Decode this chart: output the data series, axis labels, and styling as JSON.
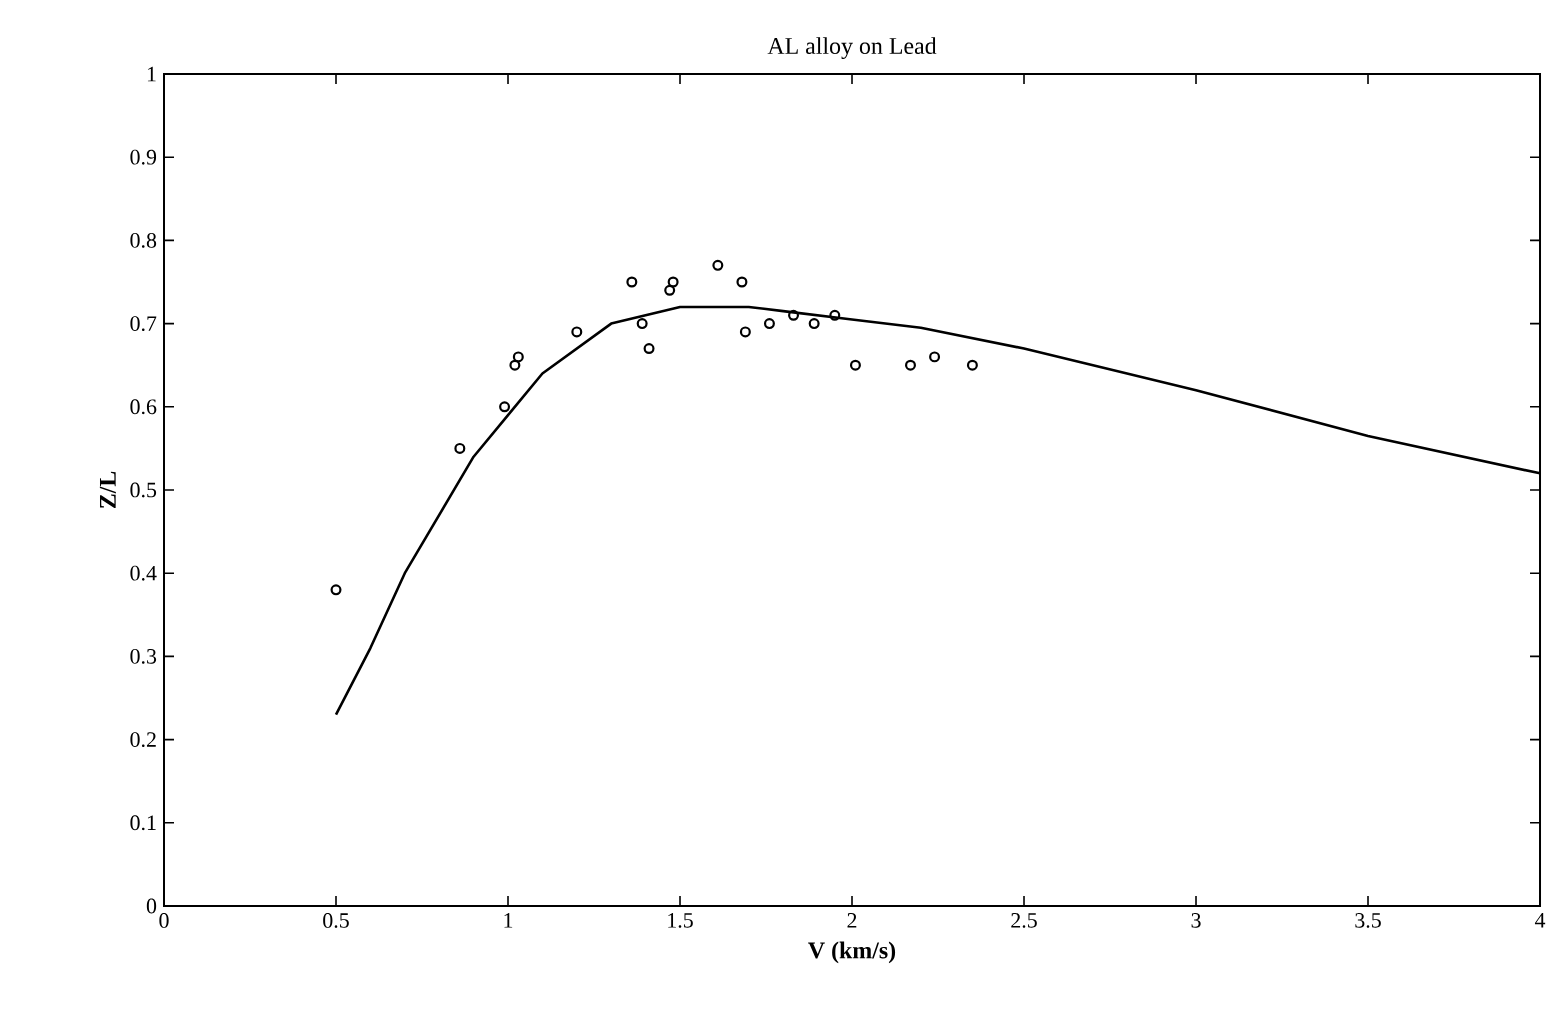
{
  "chart_data": {
    "type": "scatter",
    "title": "AL alloy on Lead",
    "xlabel": "V (km/s)",
    "ylabel": "Z/L",
    "xlim": [
      0,
      4
    ],
    "xticks": [
      0,
      0.5,
      1,
      1.5,
      2,
      2.5,
      3,
      3.5,
      4
    ],
    "ylim": [
      0,
      1
    ],
    "yticks": [
      0,
      0.1,
      0.2,
      0.3,
      0.4,
      0.5,
      0.6,
      0.7,
      0.8,
      0.9,
      1
    ],
    "grid": false,
    "series": [
      {
        "marker": "circle",
        "color": "#000000",
        "x": [
          0.5,
          0.86,
          0.99,
          1.02,
          1.03,
          1.2,
          1.36,
          1.39,
          1.41,
          1.47,
          1.48,
          1.61,
          1.68,
          1.69,
          1.76,
          1.83,
          1.89,
          1.95,
          2.01,
          2.17,
          2.24,
          2.35
        ],
        "values": [
          0.38,
          0.55,
          0.6,
          0.65,
          0.66,
          0.69,
          0.75,
          0.7,
          0.67,
          0.74,
          0.75,
          0.77,
          0.75,
          0.69,
          0.7,
          0.71,
          0.7,
          0.71,
          0.65,
          0.65,
          0.66,
          0.65
        ]
      },
      {
        "type": "line",
        "line_style": "solid",
        "color": "#000000",
        "x": [
          0.5,
          0.6,
          0.7,
          0.8,
          0.9,
          1.0,
          1.1,
          1.2,
          1.3,
          1.4,
          1.5,
          1.6,
          1.7,
          1.8,
          2.0,
          2.2,
          2.5,
          3.0,
          3.5,
          4.0
        ],
        "values": [
          0.23,
          0.31,
          0.4,
          0.47,
          0.54,
          0.59,
          0.64,
          0.67,
          0.7,
          0.71,
          0.72,
          0.72,
          0.72,
          0.715,
          0.705,
          0.695,
          0.67,
          0.62,
          0.565,
          0.52
        ]
      }
    ]
  }
}
